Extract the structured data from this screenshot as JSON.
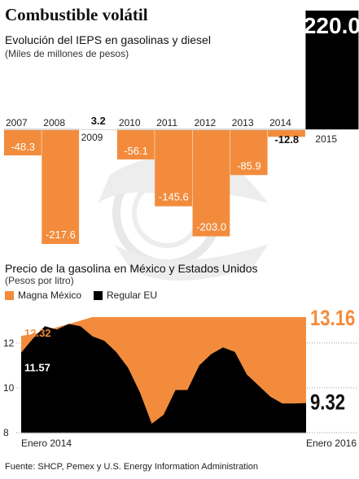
{
  "title": "Combustible volátil",
  "chart1": {
    "subtitle": "Evolución del IEPS en gasolinas y diesel",
    "unit": "(Miles de millones de pesos)"
  },
  "chart2": {
    "subtitle": "Precio de la gasolina en México y Estados Unidos",
    "unit": "(Pesos por litro)"
  },
  "source": "Fuente: SHCP, Pemex y U.S. Energy Information Administration",
  "colors": {
    "orange": "#f28c3c",
    "black": "#000000",
    "watermark": "#e8e8e8"
  },
  "chart_data": [
    {
      "type": "bar",
      "categories": [
        "2007",
        "2008",
        "2009",
        "2010",
        "2011",
        "2012",
        "2013",
        "2014",
        "2015"
      ],
      "values": [
        -48.3,
        -217.6,
        3.2,
        -56.1,
        -145.6,
        -203.0,
        -85.9,
        -12.8,
        220.0
      ],
      "value_labels": [
        "-48.3",
        "-217.6",
        "3.2",
        "-56.1",
        "-145.6",
        "-203.0",
        "-85.9",
        "-12.8",
        "220.0"
      ],
      "title": "Evolución del IEPS en gasolinas y diesel",
      "ylabel": "(Miles de millones de pesos)"
    },
    {
      "type": "area",
      "x_labels": [
        "Enero 2014",
        "Enero 2016"
      ],
      "y_ticks": [
        "8",
        "10",
        "12"
      ],
      "ylim": [
        8,
        13.8
      ],
      "series": [
        {
          "name": "Magna México",
          "values": [
            12.32,
            12.4,
            12.55,
            12.7,
            12.85,
            13.0,
            13.16,
            13.16,
            13.16,
            13.16,
            13.16,
            13.16,
            13.16,
            13.16,
            13.16,
            13.16,
            13.16,
            13.16,
            13.16,
            13.16,
            13.16,
            13.16,
            13.16,
            13.16,
            13.16
          ],
          "first_label": "12.32",
          "last_label": "13.16"
        },
        {
          "name": "Regular EU",
          "values": [
            11.57,
            12.2,
            12.75,
            12.6,
            12.85,
            12.75,
            12.3,
            12.1,
            11.6,
            10.9,
            9.8,
            8.4,
            8.8,
            9.9,
            9.9,
            11.0,
            11.5,
            11.8,
            11.6,
            10.6,
            10.1,
            9.6,
            9.3,
            9.3,
            9.32
          ],
          "first_label": "11.57",
          "last_label": "9.32"
        }
      ]
    }
  ]
}
